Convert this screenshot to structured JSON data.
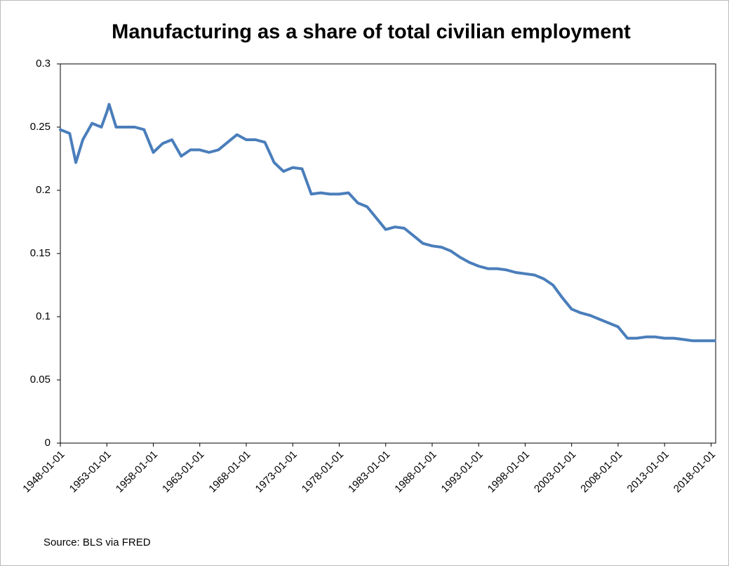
{
  "chart_data": {
    "type": "line",
    "title": "Manufacturing as a share of total civilian employment",
    "source": "Source: BLS via FRED",
    "x": [
      "1948-01-01",
      "1949-01-01",
      "1949-09-01",
      "1950-06-01",
      "1951-06-01",
      "1952-06-01",
      "1953-01-01",
      "1953-04-01",
      "1954-01-01",
      "1955-01-01",
      "1956-01-01",
      "1957-01-01",
      "1958-01-01",
      "1959-01-01",
      "1960-01-01",
      "1961-01-01",
      "1962-01-01",
      "1963-01-01",
      "1964-01-01",
      "1965-01-01",
      "1966-01-01",
      "1967-01-01",
      "1968-01-01",
      "1969-01-01",
      "1970-01-01",
      "1971-01-01",
      "1972-01-01",
      "1973-01-01",
      "1974-01-01",
      "1975-01-01",
      "1976-01-01",
      "1977-01-01",
      "1978-01-01",
      "1979-01-01",
      "1980-01-01",
      "1981-01-01",
      "1982-01-01",
      "1983-01-01",
      "1984-01-01",
      "1985-01-01",
      "1986-01-01",
      "1987-01-01",
      "1988-01-01",
      "1989-01-01",
      "1990-01-01",
      "1991-01-01",
      "1992-01-01",
      "1993-01-01",
      "1994-01-01",
      "1995-01-01",
      "1996-01-01",
      "1997-01-01",
      "1998-01-01",
      "1999-01-01",
      "2000-01-01",
      "2001-01-01",
      "2002-01-01",
      "2003-01-01",
      "2004-01-01",
      "2005-01-01",
      "2006-01-01",
      "2007-01-01",
      "2008-01-01",
      "2009-01-01",
      "2010-01-01",
      "2011-01-01",
      "2012-01-01",
      "2013-01-01",
      "2014-01-01",
      "2015-01-01",
      "2016-01-01",
      "2017-01-01",
      "2018-01-01",
      "2018-06-01"
    ],
    "values": [
      0.248,
      0.245,
      0.222,
      0.24,
      0.253,
      0.25,
      0.262,
      0.268,
      0.25,
      0.25,
      0.25,
      0.248,
      0.23,
      0.237,
      0.24,
      0.227,
      0.232,
      0.232,
      0.23,
      0.232,
      0.238,
      0.244,
      0.24,
      0.24,
      0.238,
      0.222,
      0.215,
      0.218,
      0.217,
      0.197,
      0.198,
      0.197,
      0.197,
      0.198,
      0.19,
      0.187,
      0.178,
      0.169,
      0.171,
      0.17,
      0.164,
      0.158,
      0.156,
      0.155,
      0.152,
      0.147,
      0.143,
      0.14,
      0.138,
      0.138,
      0.137,
      0.135,
      0.134,
      0.133,
      0.13,
      0.125,
      0.115,
      0.106,
      0.103,
      0.101,
      0.098,
      0.095,
      0.092,
      0.083,
      0.083,
      0.084,
      0.084,
      0.083,
      0.083,
      0.082,
      0.081,
      0.081,
      0.081,
      0.081
    ],
    "color": "#4a7ebb",
    "xlim": [
      "1948-01-01",
      "2018-07-01"
    ],
    "xticks": [
      "1948-01-01",
      "1953-01-01",
      "1958-01-01",
      "1963-01-01",
      "1968-01-01",
      "1973-01-01",
      "1978-01-01",
      "1983-01-01",
      "1988-01-01",
      "1993-01-01",
      "1998-01-01",
      "2003-01-01",
      "2008-01-01",
      "2013-01-01",
      "2018-01-01"
    ],
    "ylim": [
      0,
      0.3
    ],
    "yticks": [
      0,
      0.05,
      0.1,
      0.15,
      0.2,
      0.25,
      0.3
    ]
  }
}
